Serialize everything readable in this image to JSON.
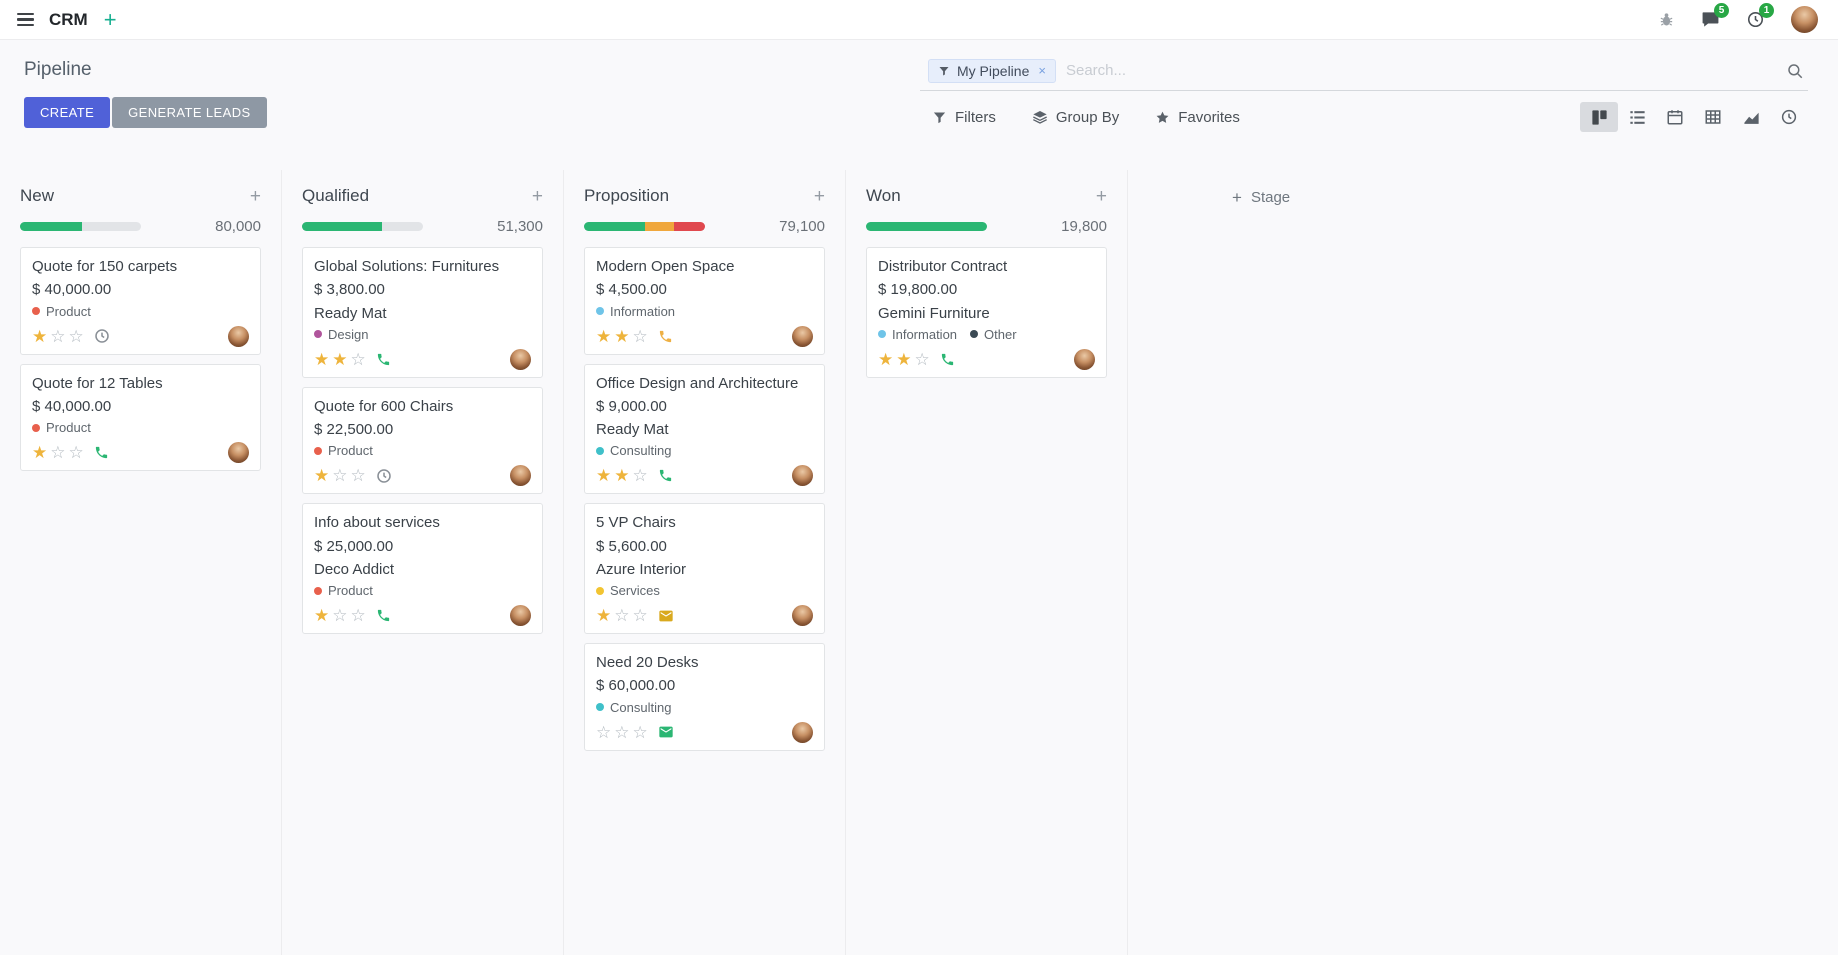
{
  "colors": {
    "primary_button": "#5061d8",
    "secondary_button": "#8e98a4",
    "progress_green": "#2bb673",
    "progress_yellow": "#f0a73c",
    "progress_red": "#e0484e",
    "progress_empty": "#e2e4e7",
    "badge_green": "#28a745",
    "star_gold": "#eeb43c"
  },
  "icons": {
    "plus": "+",
    "star_filled": "★",
    "star_empty": "☆",
    "facet_remove": "×",
    "views": [
      "kanban",
      "list",
      "calendar",
      "pivot",
      "graph",
      "activity"
    ]
  },
  "navbar": {
    "app": "CRM",
    "messages_badge": "5",
    "activities_badge": "1"
  },
  "control_panel": {
    "title": "Pipeline",
    "create": "CREATE",
    "generate_leads": "GENERATE LEADS",
    "search": {
      "facet": "My Pipeline",
      "placeholder": "Search...",
      "remove": "×"
    },
    "filters": "Filters",
    "group_by": "Group By",
    "favorites": "Favorites"
  },
  "kanban": {
    "add_stage": "Stage",
    "columns": [
      {
        "name": "New",
        "total": "80,000",
        "progress": [
          {
            "hex": "#2bb673",
            "pct": 51
          }
        ],
        "cards": [
          {
            "title": "Quote for 150 carpets",
            "amount": "$ 40,000.00",
            "tags": [
              {
                "label": "Product",
                "hex": "#e8604c"
              }
            ],
            "stars": 1,
            "activity": {
              "icon": "clock",
              "hex": "#8a9097"
            }
          },
          {
            "title": "Quote for 12 Tables",
            "amount": "$ 40,000.00",
            "tags": [
              {
                "label": "Product",
                "hex": "#e8604c"
              }
            ],
            "stars": 1,
            "activity": {
              "icon": "phone",
              "hex": "#2bb673"
            }
          }
        ]
      },
      {
        "name": "Qualified",
        "total": "51,300",
        "progress": [
          {
            "hex": "#2bb673",
            "pct": 66
          }
        ],
        "cards": [
          {
            "title": "Global Solutions: Furnitures",
            "amount": "$ 3,800.00",
            "partner": "Ready Mat",
            "tags": [
              {
                "label": "Design",
                "hex": "#b0559c"
              }
            ],
            "stars": 2,
            "activity": {
              "icon": "phone",
              "hex": "#2bb673"
            }
          },
          {
            "title": "Quote for 600 Chairs",
            "amount": "$ 22,500.00",
            "tags": [
              {
                "label": "Product",
                "hex": "#e8604c"
              }
            ],
            "stars": 1,
            "activity": {
              "icon": "clock",
              "hex": "#8a9097"
            }
          },
          {
            "title": "Info about services",
            "amount": "$ 25,000.00",
            "partner": "Deco Addict",
            "tags": [
              {
                "label": "Product",
                "hex": "#e8604c"
              }
            ],
            "stars": 1,
            "activity": {
              "icon": "phone",
              "hex": "#2bb673"
            }
          }
        ]
      },
      {
        "name": "Proposition",
        "total": "79,100",
        "progress": [
          {
            "hex": "#2bb673",
            "pct": 50
          },
          {
            "hex": "#f0a73c",
            "pct": 24
          },
          {
            "hex": "#e0484e",
            "pct": 26
          }
        ],
        "cards": [
          {
            "title": "Modern Open Space",
            "amount": "$ 4,500.00",
            "tags": [
              {
                "label": "Information",
                "hex": "#6fc4e8"
              }
            ],
            "stars": 2,
            "activity": {
              "icon": "phone",
              "hex": "#eeb044"
            }
          },
          {
            "title": "Office Design and Architecture",
            "amount": "$ 9,000.00",
            "partner": "Ready Mat",
            "tags": [
              {
                "label": "Consulting",
                "hex": "#3fc0c9"
              }
            ],
            "stars": 2,
            "activity": {
              "icon": "phone",
              "hex": "#2bb673"
            }
          },
          {
            "title": "5 VP Chairs",
            "amount": "$ 5,600.00",
            "partner": "Azure Interior",
            "tags": [
              {
                "label": "Services",
                "hex": "#f2c431"
              }
            ],
            "stars": 1,
            "activity": {
              "icon": "envelope",
              "hex": "#d9a91e"
            }
          },
          {
            "title": "Need 20 Desks",
            "amount": "$ 60,000.00",
            "tags": [
              {
                "label": "Consulting",
                "hex": "#3fc0c9"
              }
            ],
            "stars": 0,
            "activity": {
              "icon": "envelope",
              "hex": "#2bb673"
            }
          }
        ]
      },
      {
        "name": "Won",
        "total": "19,800",
        "progress": [
          {
            "hex": "#2bb673",
            "pct": 100
          }
        ],
        "cards": [
          {
            "title": "Distributor Contract",
            "amount": "$ 19,800.00",
            "partner": "Gemini Furniture",
            "tags": [
              {
                "label": "Information",
                "hex": "#6fc4e8"
              },
              {
                "label": "Other",
                "hex": "#3b4a54"
              }
            ],
            "stars": 2,
            "activity": {
              "icon": "phone",
              "hex": "#2bb673"
            }
          }
        ]
      }
    ]
  }
}
